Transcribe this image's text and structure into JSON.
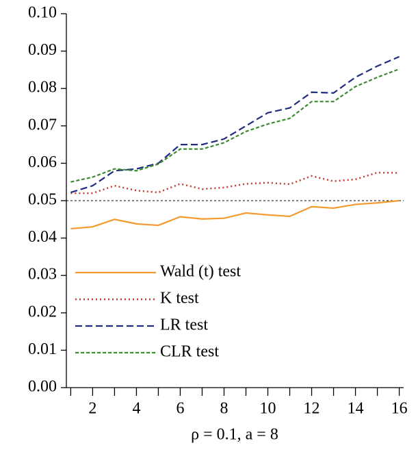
{
  "chart_data": {
    "type": "line",
    "xlabel": "ρ = 0.1, a = 8",
    "x": [
      1,
      2,
      3,
      4,
      5,
      6,
      7,
      8,
      9,
      10,
      11,
      12,
      13,
      14,
      15,
      16
    ],
    "series": [
      {
        "name": "Wald (t) test",
        "color": "#f39a2b",
        "dash": "solid",
        "values": [
          0.0425,
          0.043,
          0.045,
          0.0438,
          0.0434,
          0.0457,
          0.0451,
          0.0453,
          0.0467,
          0.0462,
          0.0458,
          0.0484,
          0.048,
          0.049,
          0.0494,
          0.05
        ]
      },
      {
        "name": "K test",
        "color": "#c0392b",
        "dash": "dotted",
        "values": [
          0.052,
          0.052,
          0.054,
          0.0527,
          0.0522,
          0.0545,
          0.0531,
          0.0535,
          0.0545,
          0.0548,
          0.0544,
          0.0566,
          0.0552,
          0.0557,
          0.0575,
          0.0574
        ]
      },
      {
        "name": "LR test",
        "color": "#1f2a80",
        "dash": "dashed",
        "values": [
          0.0522,
          0.054,
          0.058,
          0.0585,
          0.06,
          0.065,
          0.065,
          0.0665,
          0.07,
          0.0735,
          0.0748,
          0.079,
          0.0788,
          0.083,
          0.086,
          0.0885
        ]
      },
      {
        "name": "CLR test",
        "color": "#3a8a2e",
        "dash": "short-dashed",
        "values": [
          0.055,
          0.0563,
          0.0585,
          0.058,
          0.0598,
          0.0638,
          0.0638,
          0.0655,
          0.0685,
          0.0705,
          0.072,
          0.0765,
          0.0765,
          0.0805,
          0.083,
          0.0852
        ]
      }
    ],
    "hline": 0.05,
    "xlim": [
      0.8,
      16.2
    ],
    "xticks": [
      2,
      4,
      6,
      8,
      10,
      12,
      14,
      16
    ],
    "xminor_ticks": [
      1,
      3,
      5,
      7,
      9,
      11,
      13,
      15
    ],
    "ylim": [
      0,
      0.1
    ],
    "yticks": [
      {
        "value": 0,
        "label": "0.00"
      },
      0.01,
      0.02,
      0.03,
      0.04,
      0.05,
      0.06,
      0.07,
      0.08,
      0.09,
      {
        "value": 0.1,
        "label": "0.10"
      }
    ],
    "legend": "lower left"
  }
}
